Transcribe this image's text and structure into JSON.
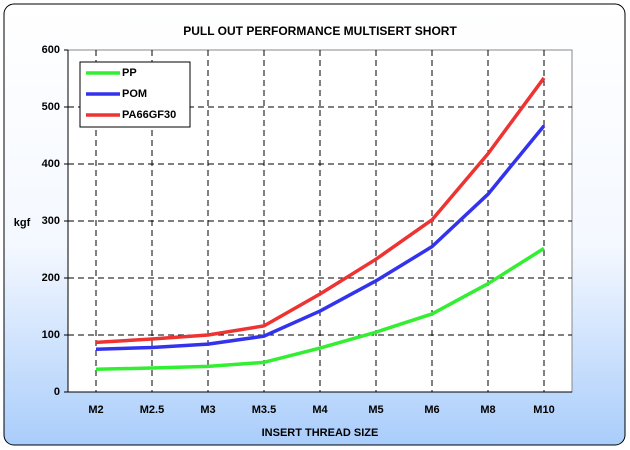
{
  "chart_data": {
    "type": "line",
    "title": "PULL OUT PERFORMANCE MULTISERT SHORT",
    "x_label": "INSERT THREAD SIZE",
    "y_label": "kgf",
    "categories": [
      "M2",
      "M2.5",
      "M3",
      "M3.5",
      "M4",
      "M5",
      "M6",
      "M8",
      "M10"
    ],
    "series": [
      {
        "name": "PP",
        "color": "#33ee33",
        "values": [
          40,
          42,
          45,
          52,
          77,
          105,
          137,
          190,
          252
        ]
      },
      {
        "name": "POM",
        "color": "#3333ee",
        "values": [
          75,
          78,
          84,
          98,
          142,
          195,
          255,
          347,
          467
        ]
      },
      {
        "name": "PA66GF30",
        "color": "#ee3333",
        "values": [
          87,
          93,
          100,
          116,
          172,
          233,
          302,
          418,
          551
        ]
      }
    ],
    "ylim": [
      0,
      600
    ],
    "yticks": [
      0,
      100,
      200,
      300,
      400,
      500,
      600
    ],
    "grid": true,
    "legend": "upper left"
  }
}
